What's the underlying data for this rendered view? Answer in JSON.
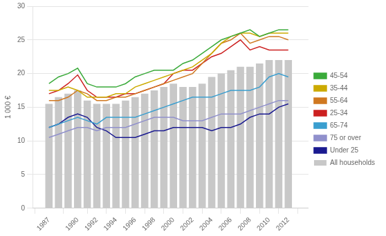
{
  "chart_data": {
    "type": "bar",
    "ylabel": "1 000 €",
    "x": [
      1987,
      1988,
      1989,
      1990,
      1991,
      1992,
      1993,
      1994,
      1995,
      1996,
      1997,
      1998,
      1999,
      2000,
      2001,
      2002,
      2003,
      2004,
      2005,
      2006,
      2007,
      2008,
      2009,
      2010,
      2011,
      2012
    ],
    "series": [
      {
        "name": "All households",
        "type": "bar",
        "color": "#c8c8c8",
        "values": [
          15.5,
          16.5,
          17.0,
          17.5,
          16.0,
          15.5,
          15.5,
          15.5,
          16.0,
          16.5,
          17.0,
          17.5,
          18.0,
          18.5,
          18.0,
          18.0,
          18.5,
          19.5,
          20.0,
          20.5,
          21.0,
          21.0,
          21.5,
          22.0,
          22.0,
          22.0
        ]
      },
      {
        "name": "45-54",
        "type": "line",
        "color": "#3aaa3a",
        "values": [
          18.5,
          19.5,
          20.0,
          20.8,
          18.5,
          18.0,
          18.0,
          18.0,
          18.5,
          19.5,
          20.0,
          20.5,
          20.5,
          20.5,
          21.5,
          22.0,
          23.0,
          24.0,
          25.0,
          25.5,
          26.0,
          26.5,
          25.5,
          26.0,
          26.5,
          26.5
        ]
      },
      {
        "name": "35-44",
        "type": "line",
        "color": "#ccaa00",
        "values": [
          17.5,
          17.5,
          18.0,
          17.5,
          16.5,
          16.5,
          16.5,
          17.0,
          17.0,
          18.0,
          18.5,
          19.0,
          19.5,
          20.0,
          20.5,
          21.0,
          22.0,
          23.0,
          24.5,
          25.5,
          26.0,
          26.0,
          25.5,
          26.0,
          26.0,
          26.0
        ]
      },
      {
        "name": "55-64",
        "type": "line",
        "color": "#d07820",
        "values": [
          16.0,
          16.0,
          16.5,
          17.5,
          17.0,
          16.0,
          16.0,
          16.5,
          16.5,
          17.0,
          17.5,
          18.0,
          18.5,
          19.0,
          19.5,
          20.0,
          21.5,
          23.0,
          24.5,
          25.0,
          26.0,
          24.5,
          25.0,
          25.5,
          25.5,
          25.0
        ]
      },
      {
        "name": "25-34",
        "type": "line",
        "color": "#cc2020",
        "values": [
          17.0,
          17.5,
          18.5,
          19.8,
          17.5,
          16.5,
          16.5,
          16.5,
          17.0,
          17.0,
          17.5,
          18.0,
          18.5,
          20.0,
          20.5,
          20.5,
          21.5,
          22.5,
          23.0,
          24.0,
          25.0,
          23.5,
          24.0,
          23.5,
          23.5,
          23.5
        ]
      },
      {
        "name": "65-74",
        "type": "line",
        "color": "#3a9ecf",
        "values": [
          12.0,
          12.5,
          13.0,
          13.5,
          13.0,
          12.5,
          13.5,
          13.5,
          13.5,
          13.5,
          14.0,
          14.5,
          15.0,
          15.5,
          16.0,
          16.5,
          16.5,
          16.5,
          17.0,
          17.5,
          17.5,
          17.5,
          18.0,
          19.5,
          20.0,
          19.5
        ]
      },
      {
        "name": "75 or over",
        "type": "line",
        "color": "#9090cc",
        "values": [
          10.5,
          11.0,
          11.5,
          12.0,
          12.0,
          11.5,
          12.0,
          12.0,
          12.0,
          12.5,
          13.0,
          13.5,
          13.5,
          13.5,
          13.0,
          13.0,
          13.0,
          13.5,
          14.0,
          14.0,
          14.0,
          14.5,
          15.0,
          15.5,
          16.0,
          16.0
        ]
      },
      {
        "name": "Under 25",
        "type": "line",
        "color": "#1a1a90",
        "values": [
          12.0,
          12.5,
          13.5,
          14.0,
          13.5,
          12.0,
          11.5,
          10.5,
          10.5,
          10.5,
          11.0,
          11.5,
          11.5,
          12.0,
          12.0,
          12.0,
          12.0,
          11.5,
          12.0,
          12.0,
          12.5,
          13.5,
          14.0,
          14.0,
          15.0,
          15.5
        ]
      }
    ],
    "xlim": [
      1986.4,
      2013.0
    ],
    "xticks": [
      1987,
      1990,
      1992,
      1994,
      1996,
      1998,
      2000,
      2002,
      2004,
      2006,
      2008,
      2010,
      2012
    ],
    "ylim": [
      0,
      30
    ],
    "yticks": [
      0,
      5,
      10,
      15,
      20,
      25,
      30
    ],
    "grid": true,
    "legend": "right"
  }
}
